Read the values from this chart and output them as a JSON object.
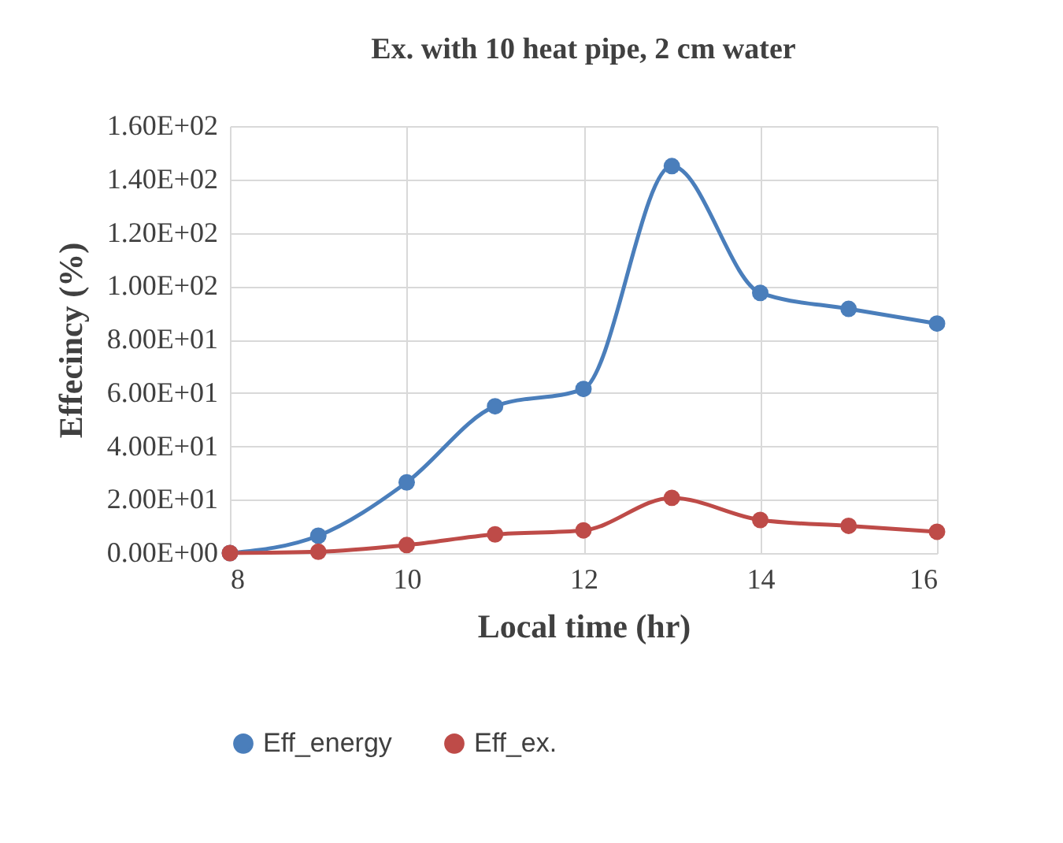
{
  "chart_data": {
    "type": "line",
    "title": "Ex. with 10 heat pipe, 2 cm water",
    "xlabel": "Local time (hr)",
    "ylabel": "Effecincy (%)",
    "x": [
      8,
      9,
      10,
      11,
      12,
      13,
      14,
      15,
      16
    ],
    "series": [
      {
        "name": "Eff_energy",
        "color": "#4a7ebb",
        "values": [
          0,
          6.5,
          26.5,
          55,
          61.5,
          145,
          97.5,
          91.5,
          86
        ]
      },
      {
        "name": "Eff_ex.",
        "color": "#be4b48",
        "values": [
          0,
          0.5,
          3,
          7,
          8.5,
          20.7,
          12.4,
          10.2,
          8
        ]
      }
    ],
    "xlim": [
      8,
      16
    ],
    "xticks": [
      8,
      10,
      12,
      14,
      16
    ],
    "ylim": [
      0,
      160
    ],
    "yticks": [
      {
        "value": 0,
        "label": "0.00E+00"
      },
      {
        "value": 20,
        "label": "2.00E+01"
      },
      {
        "value": 40,
        "label": "4.00E+01"
      },
      {
        "value": 60,
        "label": "6.00E+01"
      },
      {
        "value": 80,
        "label": "8.00E+01"
      },
      {
        "value": 100,
        "label": "1.00E+02"
      },
      {
        "value": 120,
        "label": "1.20E+02"
      },
      {
        "value": 140,
        "label": "1.40E+02"
      },
      {
        "value": 160,
        "label": "1.60E+02"
      }
    ],
    "grid": true,
    "legend": "bottom",
    "marker": "circle",
    "line_style": "solid"
  }
}
